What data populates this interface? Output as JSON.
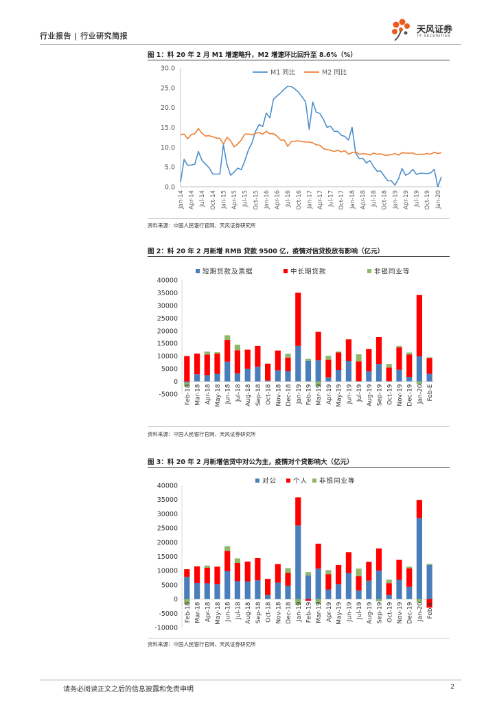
{
  "header": {
    "breadcrumb": "行业报告 | 行业研究简报"
  },
  "logo": {
    "name": "天风证券",
    "sub": "TF SECURITIES"
  },
  "footer": {
    "disclaimer": "请务必阅读正文之后的信息披露和免责申明",
    "page": "2"
  },
  "colors": {
    "m1": "#4a8fcc",
    "m2": "#ed7d31",
    "blue": "#4a7ebb",
    "red": "#ff0000",
    "green": "#8fb86e"
  },
  "figures": [
    {
      "title": "图 1：料 20 年 2 月 M1 增速略升，M2 增速环比回升至 8.6%（%）",
      "source": "资料来源：中国人民银行官网，天风证券研究所"
    },
    {
      "title": "图 2：料 20 年 2 月新增 RMB 贷款 9500 亿，疫情对信贷投放有影响（亿元）",
      "source": "资料来源：中国人民银行官网，天风证券研究所"
    },
    {
      "title": "图 3：料 20 年 2 月新增信贷中对公为主，疫情对个贷影响大（亿元）",
      "source": "资料来源：中国人民银行官网，天风证券研究所"
    }
  ],
  "chart_data": [
    {
      "type": "line",
      "legend_position": "top",
      "ylim": [
        0,
        30
      ],
      "yticks": [
        "0.0",
        "5.0",
        "10.0",
        "15.0",
        "20.0",
        "25.0",
        "30.0"
      ],
      "x_tick_labels": [
        "Jan-14",
        "Apr-14",
        "Jul-14",
        "Oct-14",
        "Jan-15",
        "Apr-15",
        "Jul-15",
        "Oct-15",
        "Jan-16",
        "Apr-16",
        "Jul-16",
        "Oct-16",
        "Jan-17",
        "Apr-17",
        "Jul-17",
        "Oct-17",
        "Jan-18",
        "Apr-18",
        "Jul-18",
        "Oct-18",
        "Jan-19",
        "Apr-19",
        "Jul-19",
        "Oct-19",
        "Jan-20"
      ],
      "x_tick_every": 3,
      "series": [
        {
          "name": "M1 同比",
          "values": [
            1.2,
            6.9,
            5.4,
            5.5,
            5.7,
            8.9,
            6.7,
            5.7,
            4.8,
            3.2,
            3.2,
            3.2,
            10.6,
            5.6,
            2.9,
            3.7,
            4.7,
            4.3,
            6.6,
            9.3,
            11.1,
            14.0,
            15.7,
            15.2,
            18.6,
            17.4,
            22.1,
            22.9,
            23.7,
            24.6,
            25.4,
            25.3,
            24.7,
            23.9,
            22.7,
            21.4,
            14.5,
            21.4,
            18.8,
            18.5,
            17.0,
            15.0,
            15.3,
            14.0,
            14.0,
            13.0,
            12.7,
            11.8,
            15.0,
            8.5,
            7.1,
            7.2,
            6.0,
            6.6,
            5.1,
            3.9,
            4.0,
            2.7,
            1.5,
            1.5,
            0.4,
            2.0,
            4.6,
            2.9,
            3.4,
            4.4,
            3.1,
            3.4,
            3.4,
            3.3,
            3.5,
            4.4,
            0.0,
            2.5
          ]
        },
        {
          "name": "M2 同比",
          "values": [
            13.2,
            13.3,
            12.1,
            13.2,
            13.4,
            14.7,
            13.5,
            12.8,
            12.9,
            12.6,
            12.3,
            12.2,
            10.8,
            12.5,
            11.6,
            10.1,
            10.8,
            11.8,
            13.3,
            13.3,
            13.1,
            13.5,
            13.7,
            13.3,
            14.0,
            13.4,
            13.4,
            12.8,
            11.8,
            11.8,
            10.2,
            11.4,
            11.5,
            11.6,
            11.4,
            11.3,
            11.3,
            11.1,
            10.6,
            10.5,
            9.6,
            9.4,
            9.2,
            8.9,
            9.2,
            8.8,
            9.1,
            8.2,
            8.6,
            8.8,
            8.2,
            8.3,
            8.3,
            8.0,
            8.5,
            8.2,
            8.3,
            8.0,
            8.0,
            8.1,
            8.4,
            8.0,
            8.6,
            8.5,
            8.5,
            8.5,
            8.1,
            8.2,
            8.2,
            8.4,
            8.2,
            8.7,
            8.4,
            8.6
          ]
        }
      ]
    },
    {
      "type": "bar",
      "stacked": true,
      "legend_position": "top",
      "ylim": [
        -5000,
        40000
      ],
      "yticks": [
        "-5000",
        "0",
        "5000",
        "10000",
        "15000",
        "20000",
        "25000",
        "30000",
        "35000",
        "40000"
      ],
      "categories": [
        "Feb-18",
        "Mar-18",
        "Apr-18",
        "May-18",
        "Jun-18",
        "Jul-18",
        "Aug-18",
        "Sep-18",
        "Oct-18",
        "Nov-18",
        "Dec-18",
        "Jan-19",
        "Feb-19",
        "Mar-19",
        "Apr-19",
        "May-19",
        "Jun-19",
        "Jul-19",
        "Aug-19",
        "Sep-19",
        "Oct-19",
        "Nov-19",
        "Dec-19",
        "Jan-20",
        "Feb-E"
      ],
      "x_tick_labels": [
        "Feb-18",
        "Mar-18",
        "Apr-18",
        "May-18",
        "Jun-18",
        "Jul-18",
        "Aug-18",
        "Sep-18",
        "Oct-18",
        "Nov-18",
        "Dec-18",
        "Jan-19",
        "Feb-19",
        "Mar-19",
        "Apr-19",
        "May-19",
        "Jun-19",
        "Jul-19",
        "Aug-19",
        "Sep-19",
        "Oct-19",
        "Nov-19",
        "Dec-19",
        "Jan-20",
        "Feb-E"
      ],
      "series": [
        {
          "name": "短期贷款及票据",
          "values": [
            -500,
            2800,
            2500,
            3000,
            7800,
            3200,
            5000,
            5800,
            300,
            4400,
            4100,
            14000,
            8000,
            8400,
            1600,
            4500,
            8000,
            100,
            4000,
            6900,
            100,
            4600,
            1800,
            9900,
            3000
          ]
        },
        {
          "name": "中长期贷款",
          "values": [
            10000,
            8200,
            8100,
            8000,
            8600,
            9100,
            7500,
            8200,
            6700,
            7800,
            5300,
            21000,
            0,
            11200,
            7000,
            6900,
            8600,
            7800,
            8800,
            10600,
            5400,
            8800,
            8800,
            24200,
            6200
          ]
        },
        {
          "name": "非银同业等",
          "values": [
            -1500,
            0,
            1200,
            500,
            1800,
            2200,
            0,
            0,
            0,
            0,
            1500,
            0,
            900,
            -2000,
            1500,
            400,
            0,
            2800,
            0,
            0,
            1400,
            600,
            800,
            -1200,
            300
          ]
        }
      ]
    },
    {
      "type": "bar",
      "stacked": true,
      "legend_position": "top",
      "ylim": [
        -10000,
        40000
      ],
      "yticks": [
        "-10000",
        "-5000",
        "0",
        "5000",
        "10000",
        "15000",
        "20000",
        "25000",
        "30000",
        "35000",
        "40000"
      ],
      "categories": [
        "Feb-18",
        "Mar-18",
        "Apr-18",
        "May-18",
        "Jun-18",
        "Jul-18",
        "Aug-18",
        "Sep-18",
        "Oct-18",
        "Nov-18",
        "Dec-18",
        "Jan-19",
        "Feb-19",
        "Mar-19",
        "Apr-19",
        "May-19",
        "Jun-19",
        "Jul-19",
        "Aug-19",
        "Sep-19",
        "Oct-19",
        "Nov-19",
        "Dec-19",
        "Jan-20",
        "Feb-E"
      ],
      "x_tick_labels": [
        "Feb-18",
        "Mar-18",
        "Apr-18",
        "May-18",
        "Jun-18",
        "Jul-18",
        "Aug-18",
        "Sep-18",
        "Oct-18",
        "Nov-18",
        "Dec-18",
        "Jan-19",
        "Feb-19",
        "Mar-19",
        "Apr-19",
        "May-19",
        "Jun-19",
        "Jul-19",
        "Aug-19",
        "Sep-19",
        "Oct-19",
        "Nov-19",
        "Dec-19",
        "Jan-20",
        "Feb-E"
      ],
      "series": [
        {
          "name": "对公",
          "values": [
            7800,
            5700,
            5600,
            5200,
            9800,
            6300,
            6200,
            6600,
            1400,
            5800,
            4700,
            25900,
            8300,
            10700,
            3400,
            5200,
            9100,
            3000,
            6500,
            10000,
            1400,
            6800,
            4300,
            28500,
            12000
          ]
        },
        {
          "name": "个人",
          "values": [
            2700,
            5800,
            5400,
            6200,
            7100,
            6400,
            7000,
            7800,
            5700,
            6500,
            4500,
            9900,
            -600,
            8800,
            5400,
            6800,
            7400,
            5100,
            6600,
            7800,
            4200,
            7000,
            6500,
            6400,
            -3000
          ]
        },
        {
          "name": "非银同业等",
          "values": [
            -1800,
            0,
            800,
            0,
            1700,
            1600,
            0,
            0,
            0,
            0,
            1700,
            -2000,
            1200,
            -1800,
            1400,
            0,
            0,
            2600,
            0,
            -800,
            1200,
            0,
            600,
            -1200,
            400
          ]
        }
      ]
    }
  ]
}
